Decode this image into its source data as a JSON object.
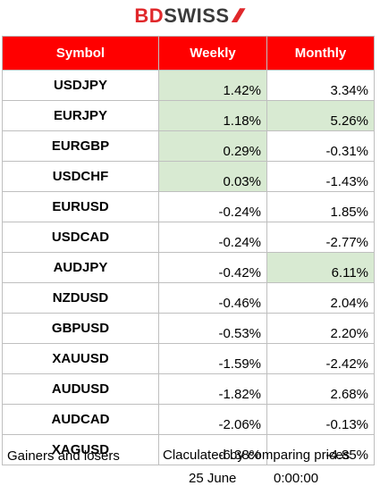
{
  "logo": {
    "part1": "BD",
    "part2": "SWISS"
  },
  "headers": {
    "symbol": "Symbol",
    "weekly": "Weekly",
    "monthly": "Monthly"
  },
  "rows": [
    {
      "symbol": "USDJPY",
      "weekly": "1.42%",
      "monthly": "3.34%",
      "weekly_gain": true,
      "monthly_gain": false
    },
    {
      "symbol": "EURJPY",
      "weekly": "1.18%",
      "monthly": "5.26%",
      "weekly_gain": true,
      "monthly_gain": true
    },
    {
      "symbol": "EURGBP",
      "weekly": "0.29%",
      "monthly": "-0.31%",
      "weekly_gain": true,
      "monthly_gain": false
    },
    {
      "symbol": "USDCHF",
      "weekly": "0.03%",
      "monthly": "-1.43%",
      "weekly_gain": true,
      "monthly_gain": false
    },
    {
      "symbol": "EURUSD",
      "weekly": "-0.24%",
      "monthly": "1.85%",
      "weekly_gain": false,
      "monthly_gain": false
    },
    {
      "symbol": "USDCAD",
      "weekly": "-0.24%",
      "monthly": "-2.77%",
      "weekly_gain": false,
      "monthly_gain": false
    },
    {
      "symbol": "AUDJPY",
      "weekly": "-0.42%",
      "monthly": "6.11%",
      "weekly_gain": false,
      "monthly_gain": true
    },
    {
      "symbol": "NZDUSD",
      "weekly": "-0.46%",
      "monthly": "2.04%",
      "weekly_gain": false,
      "monthly_gain": false
    },
    {
      "symbol": "GBPUSD",
      "weekly": "-0.53%",
      "monthly": "2.20%",
      "weekly_gain": false,
      "monthly_gain": false
    },
    {
      "symbol": "XAUUSD",
      "weekly": "-1.59%",
      "monthly": "-2.42%",
      "weekly_gain": false,
      "monthly_gain": false
    },
    {
      "symbol": "AUDUSD",
      "weekly": "-1.82%",
      "monthly": "2.68%",
      "weekly_gain": false,
      "monthly_gain": false
    },
    {
      "symbol": "AUDCAD",
      "weekly": "-2.06%",
      "monthly": "-0.13%",
      "weekly_gain": false,
      "monthly_gain": false
    },
    {
      "symbol": "XAGUSD",
      "weekly": "-6.38%",
      "monthly": "-4.85%",
      "weekly_gain": false,
      "monthly_gain": false
    }
  ],
  "footer": {
    "label": "Gainers and losers",
    "note": "Claculated by comparing prices",
    "date": "25 June",
    "time": "0:00:00"
  },
  "colors": {
    "header_bg": "#ff0000",
    "gain_bg": "#d8ead2",
    "brand_red": "#e0282b"
  }
}
